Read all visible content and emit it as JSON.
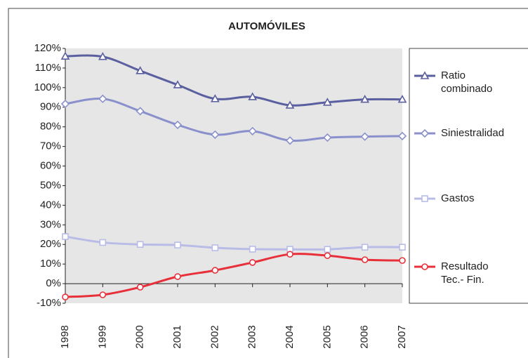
{
  "chart_data": {
    "type": "line",
    "title": "AUTOMÓVILES",
    "categories": [
      "1998",
      "1999",
      "2000",
      "2001",
      "2002",
      "2003",
      "2004",
      "2005",
      "2006",
      "2007"
    ],
    "series": [
      {
        "name": "Ratio combinado",
        "color": "#5a5f9f",
        "marker": "triangle",
        "values": [
          116,
          115.8,
          108.6,
          101.4,
          94.3,
          95.3,
          91,
          92.5,
          94,
          94
        ]
      },
      {
        "name": "Siniestralidad",
        "color": "#8a90cc",
        "marker": "diamond",
        "values": [
          91.7,
          94.3,
          88,
          81,
          76,
          77.8,
          73,
          74.5,
          75,
          75.3
        ]
      },
      {
        "name": "Gastos",
        "color": "#b8bce6",
        "marker": "square",
        "values": [
          24,
          21,
          20,
          19.7,
          18.3,
          17.6,
          17.5,
          17.5,
          18.6,
          18.6
        ]
      },
      {
        "name": "Resultado Tec.- Fin.",
        "color": "#e8303a",
        "marker": "circle",
        "values": [
          -6.8,
          -5.7,
          -1.8,
          3.6,
          6.8,
          10.8,
          15,
          14.3,
          12.2,
          11.8
        ]
      }
    ],
    "ylim": [
      -10,
      120
    ],
    "yticks": [
      {
        "value": -10,
        "label": "-10%"
      },
      {
        "value": 0,
        "label": "0%"
      },
      {
        "value": 10,
        "label": "10%"
      },
      {
        "value": 20,
        "label": "20%"
      },
      {
        "value": 30,
        "label": "30%"
      },
      {
        "value": 40,
        "label": "40%"
      },
      {
        "value": 50,
        "label": "50%"
      },
      {
        "value": 60,
        "label": "60%"
      },
      {
        "value": 70,
        "label": "70%"
      },
      {
        "value": 80,
        "label": "80%"
      },
      {
        "value": 90,
        "label": "90%"
      },
      {
        "value": 100,
        "label": "100%"
      },
      {
        "value": 110,
        "label": "110%"
      },
      {
        "value": 120,
        "label": "120%"
      }
    ],
    "grid": false,
    "legend": "right"
  }
}
